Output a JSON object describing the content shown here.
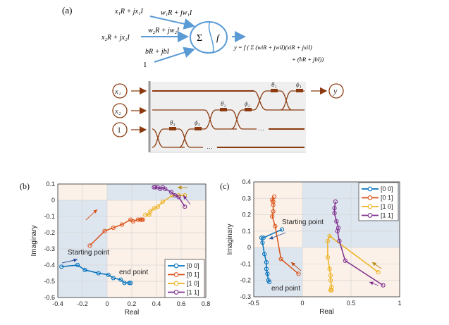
{
  "panel_a": {
    "label": "(a)",
    "neuron": {
      "in1": "x₁R + jx₁I",
      "w1": "w₁R + jw₁I",
      "in2": "x₂R + jx₂I",
      "w2": "w₂R + jw₂I",
      "bias": "bR + jbI",
      "one": "1",
      "sum": "Σ",
      "f": "f",
      "eq1": "y = f ( Σ (wiR + jwiI)(xiR + jxiI)",
      "eq2": "+ (bR + jbI))"
    },
    "mesh": {
      "inputs": [
        "x₁",
        "x₂",
        "1"
      ],
      "output": "y",
      "phases": [
        "θ₁",
        "ϕ₁",
        "θ₂",
        "ϕ₂",
        "θ₃",
        "ϕ₃"
      ],
      "ellipsis": "…"
    }
  },
  "chart_data": [
    {
      "panel": "(b)",
      "type": "line",
      "xlabel": "Real",
      "ylabel": "Imaginary",
      "xlim": [
        -0.4,
        0.8
      ],
      "ylim": [
        -0.6,
        0.1
      ],
      "xticks": [
        -0.4,
        -0.2,
        0,
        0.2,
        0.4,
        0.6,
        0.8
      ],
      "yticks": [
        0.1,
        0,
        -0.1,
        -0.2,
        -0.3,
        -0.4,
        -0.5,
        -0.6
      ],
      "grid": true,
      "legend": "bottom-right",
      "annotations": [
        "Starting point",
        "end point"
      ],
      "series": [
        {
          "name": "[0 0]",
          "color": "#0072BD",
          "x": [
            -0.37,
            -0.24,
            -0.18,
            -0.07,
            0.01,
            0.05,
            0.11,
            0.14,
            0.18,
            0.19
          ],
          "y": [
            -0.41,
            -0.4,
            -0.43,
            -0.45,
            -0.46,
            -0.48,
            -0.49,
            -0.51,
            -0.51,
            -0.51
          ]
        },
        {
          "name": "[0 1]",
          "color": "#D95319",
          "x": [
            -0.14,
            -0.02,
            0.05,
            0.12,
            0.19,
            0.21,
            0.25,
            0.27,
            0.28,
            0.29
          ],
          "y": [
            -0.28,
            -0.19,
            -0.17,
            -0.15,
            -0.12,
            -0.13,
            -0.12,
            -0.12,
            -0.12,
            -0.12
          ]
        },
        {
          "name": "[1 0]",
          "color": "#EDB120",
          "x": [
            0.31,
            0.34,
            0.35,
            0.38,
            0.41,
            0.45,
            0.53,
            0.58,
            0.63
          ],
          "y": [
            -0.09,
            -0.09,
            -0.07,
            -0.05,
            -0.04,
            -0.01,
            0.03,
            0.03,
            0.03
          ]
        },
        {
          "name": "[1 1]",
          "color": "#7E2F8E",
          "x": [
            0.63,
            0.58,
            0.55,
            0.52,
            0.47,
            0.45,
            0.43,
            0.41,
            0.39,
            0.38
          ],
          "y": [
            -0.04,
            0.02,
            0.03,
            0.05,
            0.07,
            0.08,
            0.07,
            0.08,
            0.08,
            0.08
          ]
        }
      ]
    },
    {
      "panel": "(c)",
      "type": "line",
      "xlabel": "Real",
      "ylabel": "Imaginary",
      "xlim": [
        -0.5,
        1
      ],
      "ylim": [
        -0.3,
        0.4
      ],
      "xticks": [
        -0.5,
        0,
        0.5,
        1
      ],
      "yticks": [
        0.4,
        0.3,
        0.2,
        0.1,
        0,
        -0.1,
        -0.2,
        -0.3
      ],
      "grid": true,
      "legend": "top-right",
      "annotations": [
        "Starting point",
        "end point"
      ],
      "series": [
        {
          "name": "[0 0]",
          "color": "#0072BD",
          "x": [
            -0.21,
            -0.4,
            -0.42,
            -0.41,
            -0.39,
            -0.37,
            -0.37,
            -0.36,
            -0.35,
            -0.34
          ],
          "y": [
            0.11,
            0.06,
            0.06,
            0.03,
            -0.04,
            -0.09,
            -0.13,
            -0.16,
            -0.2,
            -0.21
          ]
        },
        {
          "name": "[0 1]",
          "color": "#D95319",
          "x": [
            -0.04,
            -0.22,
            -0.28,
            -0.31,
            -0.3,
            -0.3,
            -0.3,
            -0.31,
            -0.29
          ],
          "y": [
            -0.16,
            -0.07,
            0.13,
            0.19,
            0.22,
            0.26,
            0.28,
            0.29,
            0.31
          ]
        },
        {
          "name": "[1 0]",
          "color": "#EDB120",
          "x": [
            0.78,
            0.28,
            0.26,
            0.26,
            0.28,
            0.29,
            0.29,
            0.3,
            0.29,
            0.3
          ],
          "y": [
            -0.15,
            0.07,
            0.04,
            -0.06,
            -0.13,
            -0.17,
            -0.2,
            -0.24,
            -0.26,
            -0.26
          ]
        },
        {
          "name": "[1 1]",
          "color": "#7E2F8E",
          "x": [
            0.83,
            0.44,
            0.38,
            0.36,
            0.37,
            0.35,
            0.33,
            0.33,
            0.34
          ],
          "y": [
            -0.23,
            -0.08,
            0.04,
            0.1,
            0.12,
            0.16,
            0.21,
            0.24,
            0.28
          ]
        }
      ]
    }
  ]
}
